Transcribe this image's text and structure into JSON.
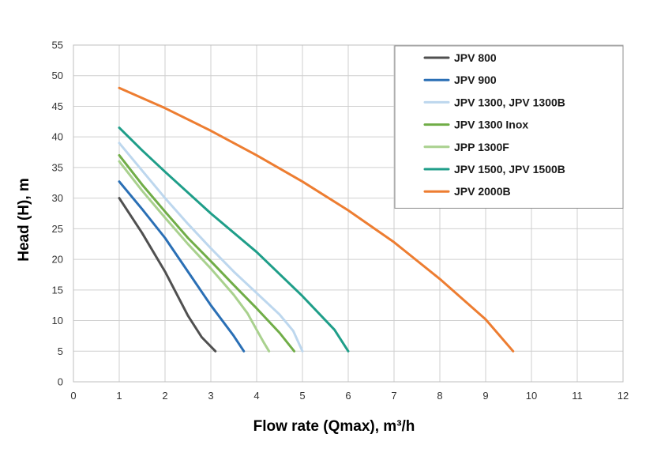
{
  "chart_data": {
    "type": "line",
    "title": "",
    "xlabel": "Flow rate (Qmax), m³/h",
    "ylabel": "Head (H), m",
    "xlim": [
      0,
      12
    ],
    "ylim": [
      0,
      55
    ],
    "x_ticks": [
      "0",
      "1",
      "2",
      "3",
      "4",
      "5",
      "6",
      "7",
      "8",
      "9",
      "10",
      "11",
      "12"
    ],
    "y_ticks": [
      "0",
      "5",
      "10",
      "15",
      "20",
      "25",
      "30",
      "35",
      "40",
      "45",
      "50",
      "55"
    ],
    "grid": true,
    "legend_position": "top-right",
    "series": [
      {
        "name": "JPV 800",
        "color": "#505050",
        "x": [
          1.0,
          1.5,
          2.0,
          2.5,
          2.8,
          3.1
        ],
        "y": [
          30,
          24.3,
          18.0,
          10.8,
          7.3,
          5
        ]
      },
      {
        "name": "JPV 900",
        "color": "#2a6fb5",
        "x": [
          1.0,
          1.5,
          2.0,
          2.5,
          3.0,
          3.5,
          3.72
        ],
        "y": [
          32.7,
          28.2,
          23.5,
          18.0,
          12.5,
          7.5,
          5
        ]
      },
      {
        "name": "JPV 1300, JPV 1300B",
        "color": "#bdd7ee",
        "x": [
          1.0,
          1.5,
          2.0,
          2.5,
          3.0,
          3.5,
          4.0,
          4.5,
          4.8,
          5.0
        ],
        "y": [
          39.0,
          34.5,
          30.0,
          25.8,
          21.8,
          18.0,
          14.5,
          11.0,
          8.3,
          5
        ]
      },
      {
        "name": "JPV 1300 Inox",
        "color": "#70ad47",
        "x": [
          1.0,
          1.5,
          2.0,
          2.5,
          3.0,
          3.5,
          4.0,
          4.5,
          4.82
        ],
        "y": [
          37.0,
          32.2,
          27.8,
          23.5,
          19.7,
          15.8,
          12.0,
          8.0,
          5
        ]
      },
      {
        "name": "JPP 1300F",
        "color": "#a9d18e",
        "x": [
          1.0,
          1.5,
          2.0,
          2.5,
          3.0,
          3.5,
          3.8,
          4.0,
          4.15,
          4.27
        ],
        "y": [
          36.0,
          31.2,
          26.8,
          22.5,
          18.5,
          14.2,
          11.2,
          8.5,
          6.5,
          5
        ]
      },
      {
        "name": "JPV 1500, JPV 1500B",
        "color": "#1f9e89",
        "x": [
          1.0,
          1.5,
          2.0,
          3.0,
          4.0,
          5.0,
          5.7,
          6.0
        ],
        "y": [
          41.5,
          37.8,
          34.3,
          27.5,
          21.2,
          14.0,
          8.5,
          5
        ]
      },
      {
        "name": "JPV 2000B",
        "color": "#ed7d31",
        "x": [
          1.0,
          2.0,
          3.0,
          4.0,
          5.0,
          6.0,
          7.0,
          8.0,
          9.0,
          9.6
        ],
        "y": [
          48.0,
          44.7,
          41.0,
          37.0,
          32.7,
          28.0,
          22.8,
          16.8,
          10.2,
          5
        ]
      }
    ]
  }
}
